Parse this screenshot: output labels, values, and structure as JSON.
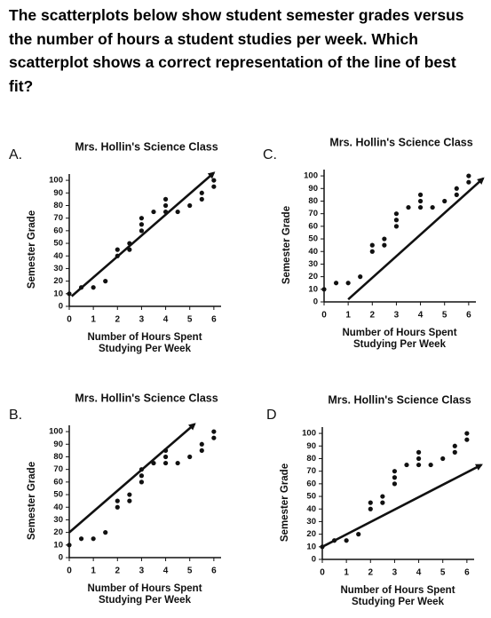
{
  "question": "The scatterplots below show student semester grades versus the number of hours a student studies per week. Which scatterplot shows a correct representation of the line of best fit?",
  "chart_data": [
    {
      "type": "scatter",
      "panel": "A.",
      "title": "Mrs. Hollin's Science Class",
      "xlabel": [
        "Number of Hours Spent",
        "Studying Per Week"
      ],
      "ylabel": "Semester Grade",
      "x": [
        0,
        0.5,
        1,
        1.5,
        2,
        2,
        2.5,
        2.5,
        3,
        3,
        3,
        3.5,
        4,
        4,
        4,
        4.5,
        5,
        5.5,
        5.5,
        6,
        6
      ],
      "y": [
        10,
        15,
        15,
        20,
        40,
        45,
        45,
        50,
        60,
        65,
        70,
        75,
        75,
        80,
        85,
        75,
        80,
        85,
        90,
        95,
        100
      ],
      "fit_line": {
        "x": [
          0.1,
          6
        ],
        "y": [
          8,
          106
        ]
      },
      "xlim": [
        0,
        6.3
      ],
      "ylim": [
        0,
        105
      ],
      "xticks": [
        0,
        1,
        2,
        3,
        4,
        5,
        6
      ],
      "yticks": [
        0,
        10,
        20,
        30,
        40,
        50,
        60,
        70,
        80,
        90,
        100
      ],
      "color": "#111111"
    },
    {
      "type": "scatter",
      "panel": "B.",
      "title": "Mrs. Hollin's Science Class",
      "xlabel": [
        "Number of Hours Spent",
        "Studying Per Week"
      ],
      "ylabel": "Semester Grade",
      "x": [
        0,
        0.5,
        1,
        1.5,
        2,
        2,
        2.5,
        2.5,
        3,
        3,
        3,
        3.5,
        4,
        4,
        4,
        4.5,
        5,
        5.5,
        5.5,
        6,
        6
      ],
      "y": [
        10,
        15,
        15,
        20,
        40,
        45,
        45,
        50,
        60,
        65,
        70,
        75,
        75,
        80,
        85,
        75,
        80,
        85,
        90,
        95,
        100
      ],
      "fit_line": {
        "x": [
          0,
          5.2
        ],
        "y": [
          20,
          106
        ]
      },
      "xlim": [
        0,
        6.3
      ],
      "ylim": [
        0,
        105
      ],
      "xticks": [
        0,
        1,
        2,
        3,
        4,
        5,
        6
      ],
      "yticks": [
        0,
        10,
        20,
        30,
        40,
        50,
        60,
        70,
        80,
        90,
        100
      ],
      "color": "#111111"
    },
    {
      "type": "scatter",
      "panel": "C.",
      "title": "Mrs. Hollin's Science Class",
      "xlabel": [
        "Number of Hours Spent",
        "Studying Per Week"
      ],
      "ylabel": "Semester Grade",
      "x": [
        0,
        0.5,
        1,
        1.5,
        2,
        2,
        2.5,
        2.5,
        3,
        3,
        3,
        3.5,
        4,
        4,
        4,
        4.5,
        5,
        5.5,
        5.5,
        6,
        6
      ],
      "y": [
        10,
        15,
        15,
        20,
        40,
        45,
        45,
        50,
        60,
        65,
        70,
        75,
        75,
        80,
        85,
        75,
        80,
        85,
        90,
        95,
        100
      ],
      "fit_line": {
        "x": [
          1,
          6.6
        ],
        "y": [
          2,
          98
        ]
      },
      "xlim": [
        0,
        6.3
      ],
      "ylim": [
        0,
        105
      ],
      "xticks": [
        0,
        1,
        2,
        3,
        4,
        5,
        6
      ],
      "yticks": [
        0,
        10,
        20,
        30,
        40,
        50,
        60,
        70,
        80,
        90,
        100
      ],
      "color": "#111111"
    },
    {
      "type": "scatter",
      "panel": "D",
      "title": "Mrs. Hollin's Science Class",
      "xlabel": [
        "Number of Hours Spent",
        "Studying Per Week"
      ],
      "ylabel": "Semester Grade",
      "x": [
        0,
        0.5,
        1,
        1.5,
        2,
        2,
        2.5,
        2.5,
        3,
        3,
        3,
        3.5,
        4,
        4,
        4,
        4.5,
        5,
        5.5,
        5.5,
        6,
        6
      ],
      "y": [
        10,
        15,
        15,
        20,
        40,
        45,
        45,
        50,
        60,
        65,
        70,
        75,
        75,
        80,
        85,
        75,
        80,
        85,
        90,
        95,
        100
      ],
      "fit_line": {
        "x": [
          0,
          6.6
        ],
        "y": [
          10,
          75
        ]
      },
      "xlim": [
        0,
        6.3
      ],
      "ylim": [
        0,
        105
      ],
      "xticks": [
        0,
        1,
        2,
        3,
        4,
        5,
        6
      ],
      "yticks": [
        0,
        10,
        20,
        30,
        40,
        50,
        60,
        70,
        80,
        90,
        100
      ],
      "color": "#111111"
    }
  ]
}
